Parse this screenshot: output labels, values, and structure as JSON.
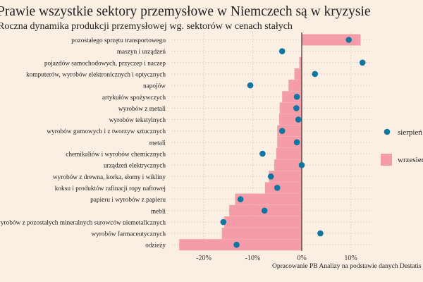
{
  "chart_data": {
    "type": "bar",
    "title": "Prawie wszystkie sektory przemysłowe w Niemczech są w kryzysie",
    "subtitle": "Roczna dynamika produkcji przemysłowej wg. sektorów w cenach stałych",
    "caption": "Opracowanie PB Analizy na podstawie danych Destatis",
    "orientation": "horizontal",
    "xlim": [
      -27,
      15
    ],
    "xticks": [
      -20,
      -10,
      0,
      10
    ],
    "xtick_labels": [
      "-20%",
      "-10%",
      "0%",
      "10%"
    ],
    "grid": true,
    "legend_placement": "right",
    "categories": [
      "pozostałego sprzętu transportowego",
      "maszyn i urządzeń",
      "pojazdów samochodowych, przyczep i naczep",
      "komputerów, wyrobów elektronicznych i optycznych",
      "napojów",
      "artykułów spożywczych",
      "wyrobów z metali",
      "wyrobów tekstylnych",
      "wyrobów gumowych i z tworzyw sztucznych",
      "metali",
      "chemikaliów i wyrobów chemicznych",
      "urządzeń elektrycznych",
      "wyrobów z drewna, korka, słomy i wikliny",
      "koksu i produktów rafinacji ropy naftowej",
      "papieru i wyrobów z papieru",
      "mebli",
      "wyrobów z pozostałych mineralnych surowców niemetalicznych",
      "wyrobów farmaceutycznych",
      "odzieży"
    ],
    "series": [
      {
        "name": "wrzesień",
        "mark": "bar",
        "color": "#f59ca9",
        "values": [
          12,
          0,
          -0.5,
          -1.5,
          -2.7,
          -4,
          -4.5,
          -4.6,
          -5,
          -5,
          -5.2,
          -5.6,
          -6.7,
          -7.5,
          -13.6,
          -14.8,
          -15.8,
          -16.3,
          -25
        ]
      },
      {
        "name": "sierpień",
        "mark": "dot",
        "color": "#0e76a0",
        "values": [
          9.6,
          -4,
          12.4,
          2.7,
          -10.5,
          -1,
          -1.1,
          -0.7,
          -4,
          -1,
          -8,
          0,
          -6.3,
          -5,
          -12.5,
          -7.6,
          -16,
          3.8,
          -13.3
        ]
      }
    ]
  }
}
